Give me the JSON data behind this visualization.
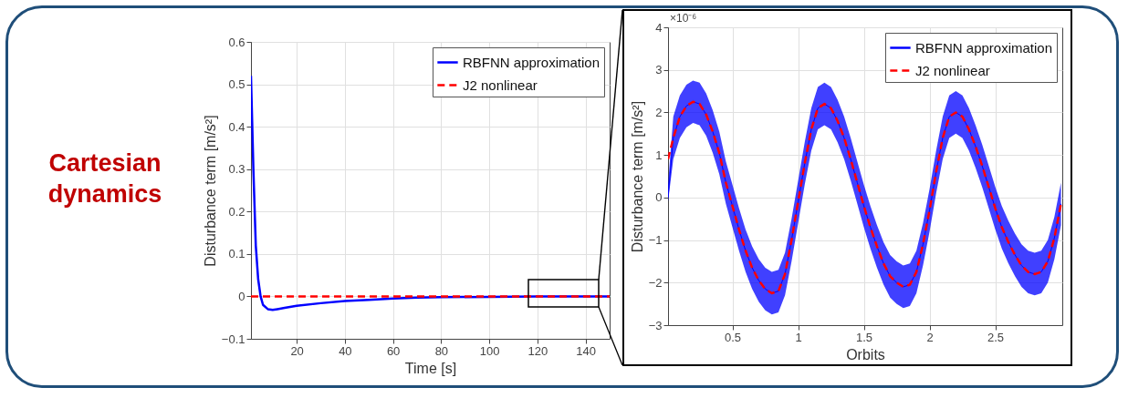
{
  "chart_data": [
    {
      "type": "line",
      "title": "Cartesian dynamics",
      "xlabel": "Time [s]",
      "ylabel": "Disturbance term [m/s²]",
      "xlim": [
        1,
        150
      ],
      "xticks": [
        20,
        40,
        60,
        80,
        100,
        120,
        140
      ],
      "ylim": [
        -0.1,
        0.6
      ],
      "yticks": [
        -0.1,
        0,
        0.1,
        0.2,
        0.3,
        0.4,
        0.5,
        0.6
      ],
      "grid": true,
      "legend": "top right",
      "series": [
        {
          "name": "RBFNN approximation",
          "color": "#0000ff",
          "line_style": "solid",
          "x": [
            1,
            2,
            3,
            4,
            5,
            6,
            8,
            10,
            12,
            15,
            20,
            30,
            40,
            50,
            60,
            70,
            80,
            100,
            120,
            150
          ],
          "values": [
            0.52,
            0.3,
            0.12,
            0.04,
            0.0,
            -0.02,
            -0.03,
            -0.032,
            -0.03,
            -0.027,
            -0.022,
            -0.016,
            -0.011,
            -0.008,
            -0.005,
            -0.003,
            -0.002,
            -0.001,
            0,
            0
          ]
        },
        {
          "name": "J2 nonlinear",
          "color": "#ff0000",
          "line_style": "dashed",
          "x": [
            1,
            150
          ],
          "values": [
            0,
            0
          ]
        }
      ]
    },
    {
      "type": "line",
      "xlabel": "Orbits",
      "ylabel": "Disturbance term [m/s²]",
      "annotations": [
        "×10⁻⁶"
      ],
      "xlim": [
        0.01,
        3.01
      ],
      "xticks": [
        0.5,
        1,
        1.5,
        2,
        2.5
      ],
      "ylim": [
        -3,
        4
      ],
      "yticks": [
        -3,
        -2,
        -1,
        0,
        1,
        2,
        3,
        4
      ],
      "grid": true,
      "legend": "top right",
      "series": [
        {
          "name": "RBFNN approximation",
          "color": "#0000ff",
          "line_style": "solid",
          "x": [
            0.01,
            0.05,
            0.1,
            0.15,
            0.2,
            0.25,
            0.3,
            0.35,
            0.4,
            0.45,
            0.5,
            0.55,
            0.6,
            0.65,
            0.7,
            0.75,
            0.8,
            0.85,
            0.9,
            0.95,
            1.0,
            1.05,
            1.1,
            1.15,
            1.2,
            1.25,
            1.3,
            1.35,
            1.4,
            1.45,
            1.5,
            1.55,
            1.6,
            1.65,
            1.7,
            1.75,
            1.8,
            1.85,
            1.9,
            1.95,
            2.0,
            2.05,
            2.1,
            2.15,
            2.2,
            2.25,
            2.3,
            2.35,
            2.4,
            2.45,
            2.5,
            2.55,
            2.6,
            2.65,
            2.7,
            2.75,
            2.8,
            2.85,
            2.9,
            2.95,
            3.0
          ],
          "values": [
            0,
            1.4,
            1.9,
            2.15,
            2.25,
            2.2,
            1.95,
            1.55,
            1.05,
            0.35,
            -0.2,
            -0.75,
            -1.25,
            -1.65,
            -1.95,
            -2.15,
            -2.25,
            -2.2,
            -1.8,
            -1.0,
            -0.1,
            0.8,
            1.6,
            2.1,
            2.2,
            2.1,
            1.8,
            1.4,
            0.9,
            0.35,
            -0.2,
            -0.7,
            -1.15,
            -1.55,
            -1.85,
            -2.0,
            -2.1,
            -2.05,
            -1.75,
            -1.1,
            -0.3,
            0.6,
            1.4,
            1.9,
            2.0,
            1.9,
            1.6,
            1.2,
            0.75,
            0.25,
            -0.25,
            -0.7,
            -1.05,
            -1.35,
            -1.6,
            -1.75,
            -1.8,
            -1.75,
            -1.5,
            -0.95,
            -0.15
          ],
          "lower": [
            -0.1,
            0.9,
            1.4,
            1.65,
            1.75,
            1.7,
            1.45,
            1.05,
            0.55,
            -0.15,
            -0.7,
            -1.25,
            -1.75,
            -2.15,
            -2.45,
            -2.65,
            -2.75,
            -2.7,
            -2.3,
            -1.5,
            -0.6,
            0.3,
            1.1,
            1.6,
            1.7,
            1.6,
            1.3,
            0.9,
            0.4,
            -0.15,
            -0.7,
            -1.2,
            -1.65,
            -2.05,
            -2.35,
            -2.5,
            -2.6,
            -2.55,
            -2.25,
            -1.6,
            -0.8,
            0.1,
            0.9,
            1.4,
            1.5,
            1.4,
            1.1,
            0.7,
            0.25,
            -0.25,
            -0.75,
            -1.2,
            -1.55,
            -1.85,
            -2.1,
            -2.25,
            -2.3,
            -2.25,
            -2.0,
            -1.45,
            -0.65
          ],
          "upper": [
            0.3,
            1.9,
            2.4,
            2.65,
            2.75,
            2.7,
            2.45,
            2.05,
            1.55,
            0.85,
            0.3,
            -0.25,
            -0.75,
            -1.15,
            -1.45,
            -1.65,
            -1.75,
            -1.7,
            -1.3,
            -0.5,
            0.4,
            1.3,
            2.1,
            2.6,
            2.7,
            2.6,
            2.3,
            1.9,
            1.4,
            0.85,
            0.3,
            -0.2,
            -0.65,
            -1.05,
            -1.35,
            -1.5,
            -1.6,
            -1.55,
            -1.25,
            -0.6,
            0.2,
            1.1,
            1.9,
            2.4,
            2.5,
            2.4,
            2.1,
            1.7,
            1.25,
            0.75,
            0.25,
            -0.2,
            -0.55,
            -0.85,
            -1.1,
            -1.25,
            -1.3,
            -1.25,
            -1.0,
            -0.45,
            0.35
          ]
        },
        {
          "name": "J2 nonlinear",
          "color": "#ff0000",
          "line_style": "dashed",
          "x": [
            0.01,
            0.05,
            0.1,
            0.15,
            0.2,
            0.25,
            0.3,
            0.35,
            0.4,
            0.45,
            0.5,
            0.55,
            0.6,
            0.65,
            0.7,
            0.75,
            0.8,
            0.85,
            0.9,
            0.95,
            1.0,
            1.05,
            1.1,
            1.15,
            1.2,
            1.25,
            1.3,
            1.35,
            1.4,
            1.45,
            1.5,
            1.55,
            1.6,
            1.65,
            1.7,
            1.75,
            1.8,
            1.85,
            1.9,
            1.95,
            2.0,
            2.05,
            2.1,
            2.15,
            2.2,
            2.25,
            2.3,
            2.35,
            2.4,
            2.45,
            2.5,
            2.55,
            2.6,
            2.65,
            2.7,
            2.75,
            2.8,
            2.85,
            2.9,
            2.95,
            3.0
          ],
          "values": [
            0.9,
            1.4,
            1.9,
            2.15,
            2.25,
            2.2,
            1.95,
            1.55,
            1.05,
            0.35,
            -0.2,
            -0.75,
            -1.25,
            -1.65,
            -1.95,
            -2.15,
            -2.25,
            -2.2,
            -1.8,
            -1.0,
            -0.1,
            0.8,
            1.6,
            2.1,
            2.2,
            2.1,
            1.8,
            1.4,
            0.9,
            0.35,
            -0.2,
            -0.7,
            -1.15,
            -1.55,
            -1.85,
            -2.0,
            -2.1,
            -2.05,
            -1.75,
            -1.1,
            -0.3,
            0.6,
            1.4,
            1.9,
            2.0,
            1.9,
            1.6,
            1.2,
            0.75,
            0.25,
            -0.25,
            -0.7,
            -1.05,
            -1.35,
            -1.6,
            -1.75,
            -1.8,
            -1.75,
            -1.5,
            -0.95,
            -0.15
          ]
        }
      ]
    }
  ]
}
